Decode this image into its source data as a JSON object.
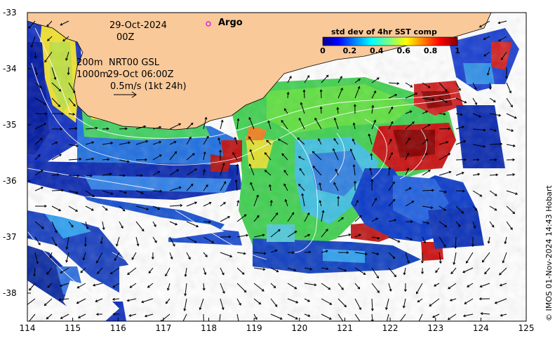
{
  "map": {
    "date_line": "29-Oct-2024",
    "hour_line": "00Z",
    "legend_argo": "Argo",
    "contour_labels": [
      "200m",
      "1000m"
    ],
    "product": "NRT00 GSL",
    "product_time": "29-Oct 06:00Z",
    "scale_text": "0.5m/s (1kt 24h)",
    "credit": "© IMOS 01-Nov-2024 14:43 Hobart",
    "lon_ticks": [
      "114",
      "115",
      "116",
      "117",
      "118",
      "119",
      "120",
      "121",
      "122",
      "123",
      "124",
      "125"
    ],
    "lat_ticks": [
      "-33",
      "-34",
      "-35",
      "-36",
      "-37",
      "-38"
    ],
    "lon_range": [
      114,
      125
    ],
    "lat_range": [
      -38.5,
      -33
    ],
    "colors": {
      "land": "#f9c999",
      "argo_marker": "#e020e0"
    }
  },
  "colorbar": {
    "title": "std dev of 4hr SST comp",
    "ticks": [
      "0",
      "0.2",
      "0.4",
      "0.6",
      "0.8",
      "1"
    ],
    "range": [
      0,
      1
    ],
    "colormap": "jet"
  }
}
